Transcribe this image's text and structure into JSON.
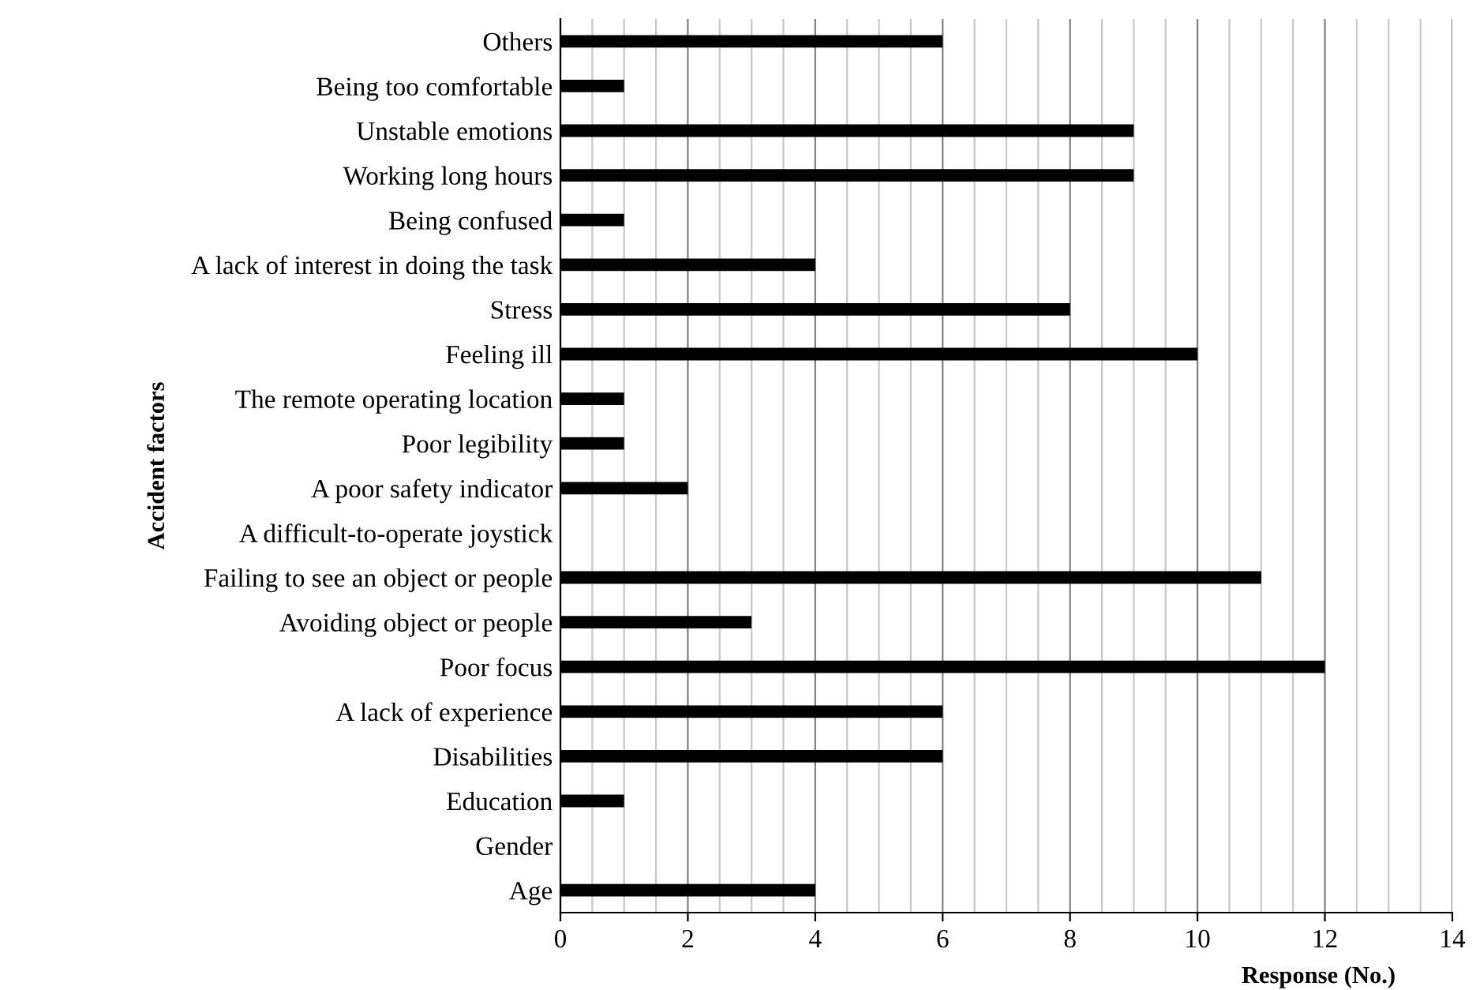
{
  "chart_data": {
    "type": "bar",
    "orientation": "horizontal",
    "xlabel": "Response (No.)",
    "ylabel": "Accident factors",
    "categories": [
      "Others",
      "Being too comfortable",
      "Unstable emotions",
      "Working long hours",
      "Being confused",
      "A lack of interest in doing the task",
      "Stress",
      "Feeling ill",
      "The remote operating location",
      "Poor legibility",
      "A poor safety indicator",
      "A difficult-to-operate joystick",
      "Failing to see an object or people",
      "Avoiding object or people",
      "Poor focus",
      "A lack of experience",
      "Disabilities",
      "Education",
      "Gender",
      "Age"
    ],
    "values": [
      6,
      1,
      9,
      9,
      1,
      4,
      8,
      10,
      1,
      1,
      2,
      0,
      11,
      3,
      12,
      6,
      6,
      1,
      0,
      4
    ],
    "color": "#000000",
    "xlim": [
      0,
      14
    ],
    "xticks": [
      0,
      2,
      4,
      6,
      8,
      10,
      12,
      14
    ],
    "grid": "x"
  }
}
